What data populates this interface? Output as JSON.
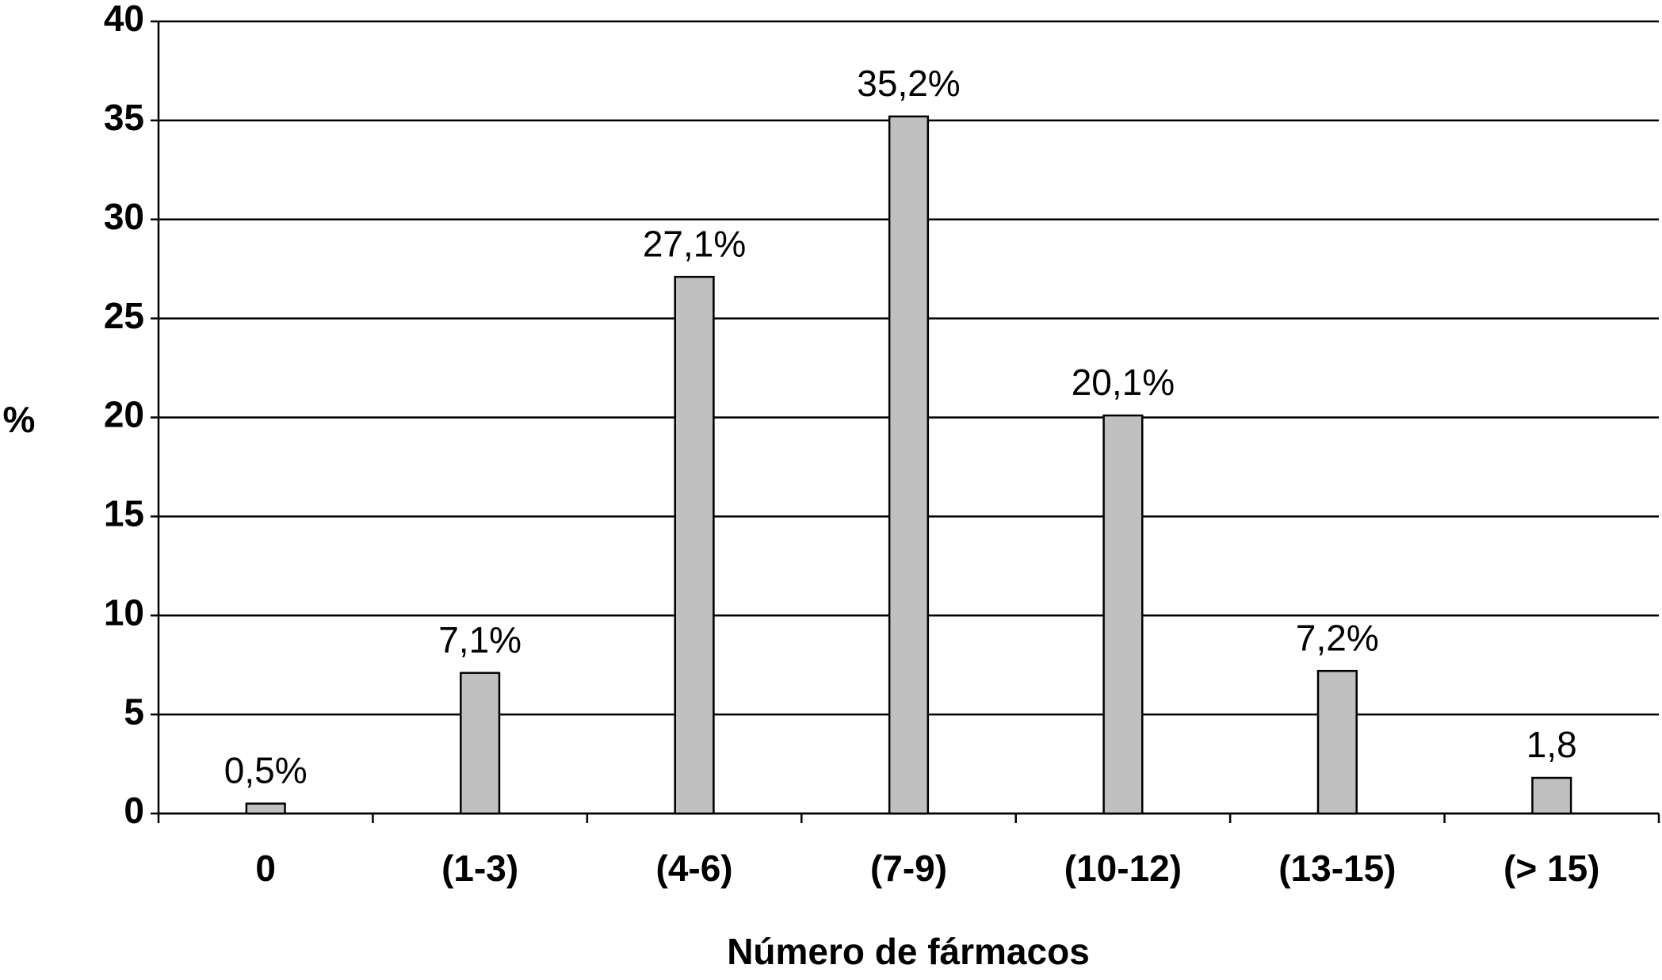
{
  "chart_data": {
    "type": "bar",
    "categories": [
      "0",
      "(1-3)",
      "(4-6)",
      "(7-9)",
      "(10-12)",
      "(13-15)",
      "(> 15)"
    ],
    "values": [
      0.5,
      7.1,
      27.1,
      35.2,
      20.1,
      7.2,
      1.8
    ],
    "value_labels": [
      "0,5%",
      "7,1%",
      "27,1%",
      "35,2%",
      "20,1%",
      "7,2%",
      "1,8"
    ],
    "color": "#c0c0c0",
    "ylabel": "%",
    "xlabel": "Número de fármacos",
    "ylim": [
      0,
      40
    ],
    "yticks": [
      0,
      5,
      10,
      15,
      20,
      25,
      30,
      35,
      40
    ],
    "grid": true
  }
}
